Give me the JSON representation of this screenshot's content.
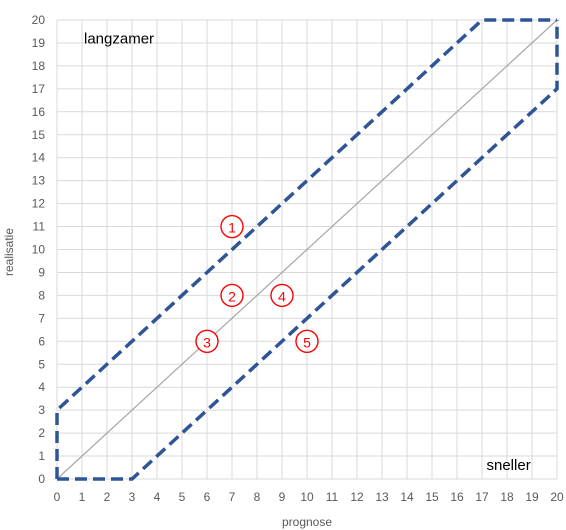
{
  "chart_data": {
    "type": "scatter",
    "xlabel": "prognose",
    "ylabel": "realisatie",
    "xlim": [
      0,
      20
    ],
    "ylim": [
      0,
      20
    ],
    "xticks": [
      0,
      1,
      2,
      3,
      4,
      5,
      6,
      7,
      8,
      9,
      10,
      11,
      12,
      13,
      14,
      15,
      16,
      17,
      18,
      19,
      20
    ],
    "yticks": [
      0,
      1,
      2,
      3,
      4,
      5,
      6,
      7,
      8,
      9,
      10,
      11,
      12,
      13,
      14,
      15,
      16,
      17,
      18,
      19,
      20
    ],
    "grid": true,
    "annotations": [
      {
        "text": "langzamer",
        "x": 1,
        "y": 19.2
      },
      {
        "text": "sneller",
        "x": 17.1,
        "y": 0.6
      }
    ],
    "diagonal": [
      [
        0,
        0
      ],
      [
        20,
        20
      ]
    ],
    "bounds": {
      "upper": [
        [
          0,
          0
        ],
        [
          0,
          3
        ],
        [
          17,
          20
        ],
        [
          20,
          20
        ]
      ],
      "lower": [
        [
          0,
          0
        ],
        [
          3,
          0
        ],
        [
          20,
          17
        ],
        [
          20,
          20
        ]
      ]
    },
    "points": [
      {
        "label": "1",
        "x": 7,
        "y": 11
      },
      {
        "label": "2",
        "x": 7,
        "y": 8
      },
      {
        "label": "3",
        "x": 6,
        "y": 6
      },
      {
        "label": "4",
        "x": 9,
        "y": 8
      },
      {
        "label": "5",
        "x": 10,
        "y": 6
      }
    ],
    "colors": {
      "bounds": "#2F5597",
      "diagonal": "#A6A6A6",
      "grid": "#D9D9D9",
      "marker": "#FF0000"
    }
  }
}
